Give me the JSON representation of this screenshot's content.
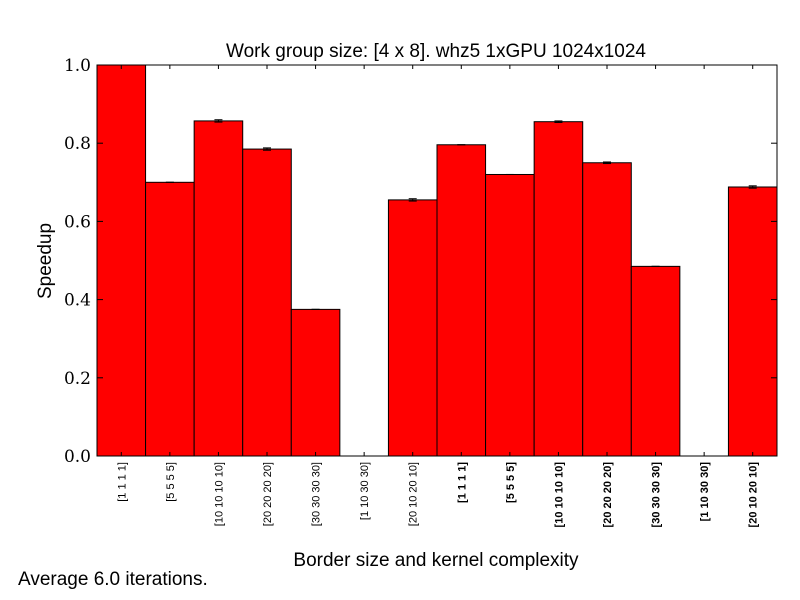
{
  "chart_data": {
    "type": "bar",
    "title": "Work group size: [4 x 8]. whz5 1xGPU 1024x1024",
    "xlabel": "Border size and kernel complexity",
    "ylabel": "Speedup",
    "ylim": [
      0.0,
      1.0
    ],
    "yticks": [
      "0.0",
      "0.2",
      "0.4",
      "0.6",
      "0.8",
      "1.0"
    ],
    "grid": false,
    "bar_color": "#ff0000",
    "categories": [
      "[1 1 1 1]",
      "[5 5 5 5]",
      "[10 10 10 10]",
      "[20 20 20 20]",
      "[30 30 30 30]",
      "[1 10 30 30]",
      "[20 10 20 10]",
      "[1 1 1 1]",
      "[5 5 5 5]",
      "[10 10 10 10]",
      "[20 20 20 20]",
      "[30 30 30 30]",
      "[1 10 30 30]",
      "[20 10 20 10]"
    ],
    "bold_labels": [
      false,
      false,
      false,
      false,
      false,
      false,
      false,
      true,
      true,
      true,
      true,
      true,
      true,
      true
    ],
    "values": [
      1.0,
      0.7,
      0.857,
      0.785,
      0.375,
      0.0,
      0.655,
      0.796,
      0.72,
      0.855,
      0.75,
      0.485,
      0.0,
      0.688
    ],
    "errors": [
      0.0,
      0.0,
      0.003,
      0.003,
      0.0,
      0.0,
      0.003,
      0.0,
      0.0,
      0.002,
      0.002,
      0.0,
      0.0,
      0.003
    ]
  },
  "footnote": "Average 6.0 iterations."
}
